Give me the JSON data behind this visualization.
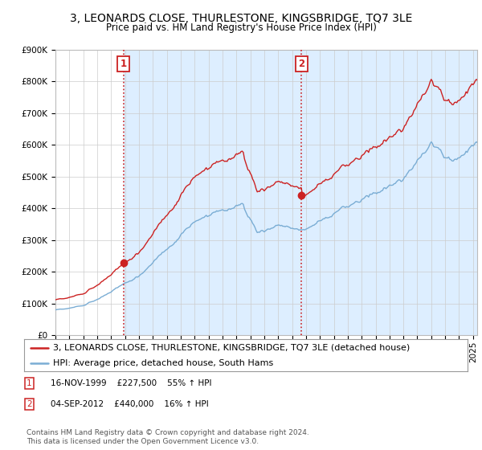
{
  "title": "3, LEONARDS CLOSE, THURLESTONE, KINGSBRIDGE, TQ7 3LE",
  "subtitle": "Price paid vs. HM Land Registry's House Price Index (HPI)",
  "ylim": [
    0,
    900000
  ],
  "xlim_start": 1995.0,
  "xlim_end": 2025.3,
  "sale1_date_x": 1999.88,
  "sale1_price": 227500,
  "sale1_label": "1",
  "sale1_text": "16-NOV-1999    £227,500    55% ↑ HPI",
  "sale2_date_x": 2012.67,
  "sale2_price": 440000,
  "sale2_label": "2",
  "sale2_text": "04-SEP-2012    £440,000    16% ↑ HPI",
  "hpi_color": "#7aadd4",
  "price_color": "#cc2222",
  "vline_color": "#cc2222",
  "shade_color": "#ddeeff",
  "legend_label_price": "3, LEONARDS CLOSE, THURLESTONE, KINGSBRIDGE, TQ7 3LE (detached house)",
  "legend_label_hpi": "HPI: Average price, detached house, South Hams",
  "footnote": "Contains HM Land Registry data © Crown copyright and database right 2024.\nThis data is licensed under the Open Government Licence v3.0.",
  "background_color": "#ffffff",
  "grid_color": "#cccccc",
  "sale_marker_size": 6,
  "title_fontsize": 10,
  "subtitle_fontsize": 8.5,
  "tick_fontsize": 7.5,
  "legend_fontsize": 8,
  "footnote_fontsize": 6.5
}
